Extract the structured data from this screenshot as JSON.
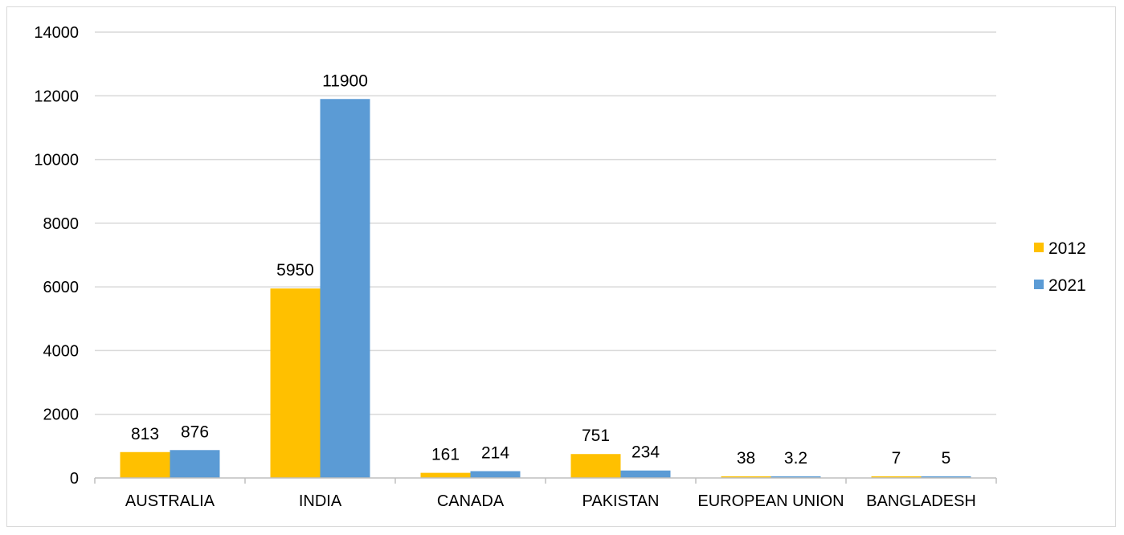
{
  "chart_data": {
    "type": "bar",
    "title": "",
    "xlabel": "",
    "ylabel": "",
    "categories": [
      "AUSTRALIA",
      "INDIA",
      "CANADA",
      "PAKISTAN",
      "EUROPEAN UNION",
      "BANGLADESH"
    ],
    "series": [
      {
        "name": "2012",
        "color": "#FFC000",
        "values": [
          813,
          5950,
          161,
          751,
          38,
          7
        ],
        "labels": [
          "813",
          "5950",
          "161",
          "751",
          "38",
          "7"
        ]
      },
      {
        "name": "2021",
        "color": "#5B9BD5",
        "values": [
          876,
          11900,
          214,
          234,
          3.2,
          5
        ],
        "labels": [
          "876",
          "11900",
          "214",
          "234",
          "3.2",
          "5"
        ]
      }
    ],
    "ylim": [
      0,
      14000
    ],
    "yticks": [
      0,
      2000,
      4000,
      6000,
      8000,
      10000,
      12000,
      14000
    ],
    "grid": true,
    "legend_position": "right"
  }
}
